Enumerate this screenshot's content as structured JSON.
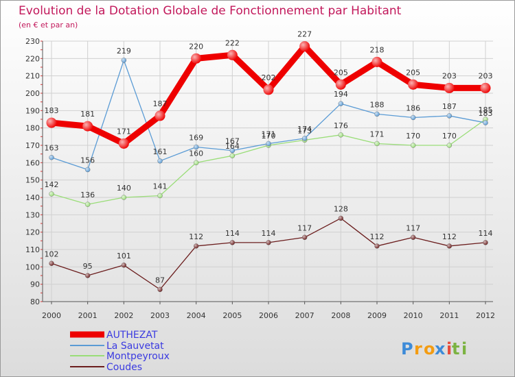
{
  "chart_data": {
    "type": "line",
    "title": "Evolution de la Dotation Globale de Fonctionnement par Habitant",
    "subtitle": "(en € et par an)",
    "x": [
      "2000",
      "2001",
      "2002",
      "2003",
      "2004",
      "2005",
      "2006",
      "2007",
      "2008",
      "2009",
      "2010",
      "2011",
      "2012"
    ],
    "ylim": [
      80,
      230
    ],
    "yticks": [
      80,
      90,
      100,
      110,
      120,
      130,
      140,
      150,
      160,
      170,
      180,
      190,
      200,
      210,
      220,
      230
    ],
    "grid": true,
    "legend_position": "bottom-left",
    "series": [
      {
        "name": "AUTHEZAT",
        "color": "#ee0000",
        "values": [
          183,
          181,
          171,
          187,
          220,
          222,
          202,
          227,
          205,
          218,
          205,
          203,
          203
        ]
      },
      {
        "name": "La Sauvetat",
        "color": "#5a9bd5",
        "values": [
          163,
          156,
          219,
          161,
          169,
          167,
          171,
          174,
          194,
          188,
          186,
          187,
          183
        ]
      },
      {
        "name": "Montpeyroux",
        "color": "#99dd77",
        "values": [
          142,
          136,
          140,
          141,
          160,
          164,
          170,
          173,
          176,
          171,
          170,
          170,
          185
        ]
      },
      {
        "name": "Coudes",
        "color": "#6b1d1d",
        "values": [
          102,
          95,
          101,
          87,
          112,
          114,
          114,
          117,
          128,
          112,
          117,
          112,
          114
        ]
      }
    ]
  },
  "brand": {
    "p": "P",
    "r": "r",
    "o": "o",
    "x": "x",
    "i": "i",
    "t": "t",
    "i2": "i"
  }
}
